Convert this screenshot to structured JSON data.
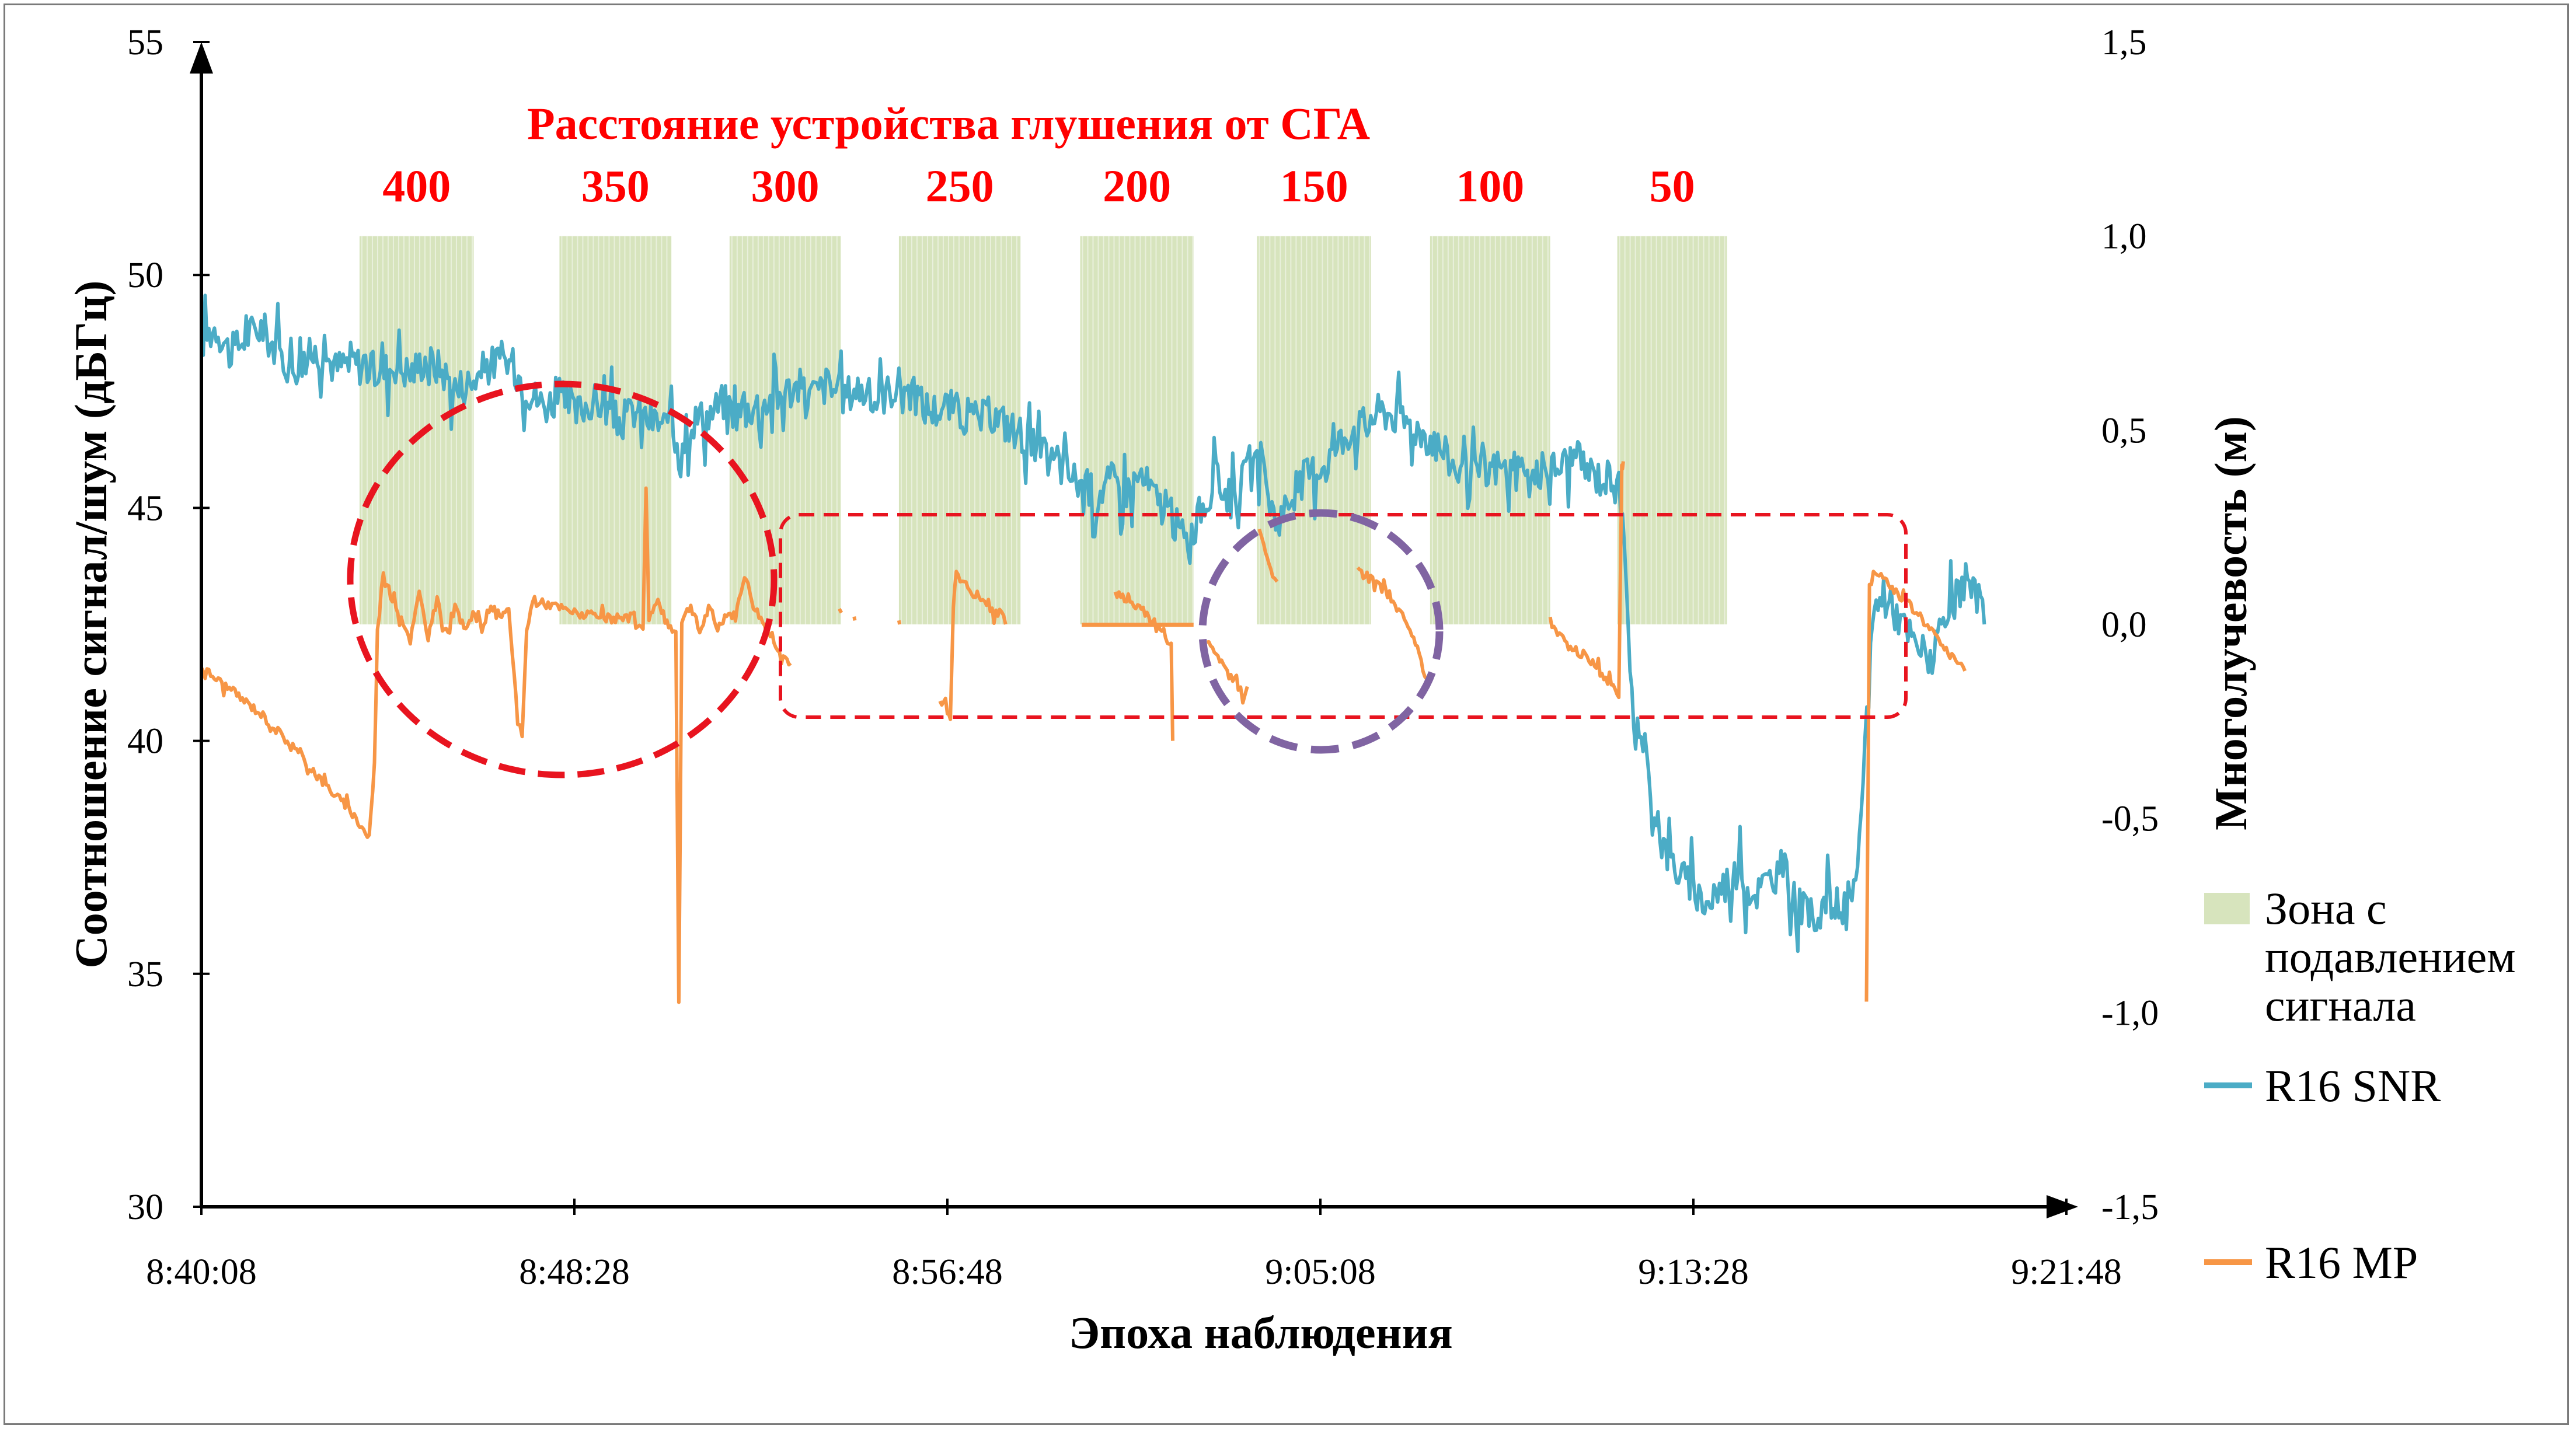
{
  "chart_data": {
    "type": "line",
    "title": "Расстояние устройства глушения от СГА",
    "xlabel": "Эпоха наблюдения",
    "ylabel_left": "Соотношение сигнал/шум (дБГц)",
    "ylabel_right": "Многолучевость (м)",
    "x_ticks": [
      "8:40:08",
      "8:48:28",
      "8:56:48",
      "9:05:08",
      "9:13:28",
      "9:21:48"
    ],
    "x_range_seconds": [
      0,
      2500
    ],
    "y_left_ticks": [
      "30",
      "35",
      "40",
      "45",
      "50",
      "55"
    ],
    "y_left_range": [
      30,
      55
    ],
    "y_right_ticks": [
      "-1,5",
      "-1,0",
      "-0,5",
      "0,0",
      "0,5",
      "1,0",
      "1,5"
    ],
    "y_right_range": [
      -1.5,
      1.5
    ],
    "zone_labels": [
      "400",
      "350",
      "300",
      "250",
      "200",
      "150",
      "100",
      "50"
    ],
    "zones_seconds": [
      [
        212,
        365
      ],
      [
        480,
        630
      ],
      [
        708,
        857
      ],
      [
        935,
        1098
      ],
      [
        1178,
        1330
      ],
      [
        1415,
        1568
      ],
      [
        1647,
        1808
      ],
      [
        1898,
        2045
      ]
    ],
    "zone_level_right": 1.0,
    "series": [
      {
        "name": "R16 SNR",
        "axis": "left",
        "points": [
          [
            0,
            48.6
          ],
          [
            20,
            48.9
          ],
          [
            40,
            48.3
          ],
          [
            60,
            48.7
          ],
          [
            80,
            48.9
          ],
          [
            100,
            48.4
          ],
          [
            120,
            48.0
          ],
          [
            140,
            48.2
          ],
          [
            160,
            48.4
          ],
          [
            180,
            48.0
          ],
          [
            200,
            48.2
          ],
          [
            220,
            48.0
          ],
          [
            240,
            47.9
          ],
          [
            260,
            48.1
          ],
          [
            280,
            47.9
          ],
          [
            300,
            48.2
          ],
          [
            320,
            48.0
          ],
          [
            340,
            47.6
          ],
          [
            360,
            47.7
          ],
          [
            380,
            48.0
          ],
          [
            400,
            48.2
          ],
          [
            420,
            48.0
          ],
          [
            440,
            47.5
          ],
          [
            460,
            47.2
          ],
          [
            480,
            47.4
          ],
          [
            500,
            47.0
          ],
          [
            520,
            47.3
          ],
          [
            540,
            47.2
          ],
          [
            560,
            46.8
          ],
          [
            580,
            47.1
          ],
          [
            600,
            46.9
          ],
          [
            620,
            46.8
          ],
          [
            640,
            46.5
          ],
          [
            660,
            46.9
          ],
          [
            680,
            47.0
          ],
          [
            700,
            47.3
          ],
          [
            720,
            47.0
          ],
          [
            740,
            47.2
          ],
          [
            760,
            47.3
          ],
          [
            780,
            47.5
          ],
          [
            800,
            47.6
          ],
          [
            820,
            47.4
          ],
          [
            840,
            47.7
          ],
          [
            860,
            47.4
          ],
          [
            880,
            47.6
          ],
          [
            900,
            47.3
          ],
          [
            920,
            47.5
          ],
          [
            940,
            47.7
          ],
          [
            960,
            47.3
          ],
          [
            980,
            47.1
          ],
          [
            1000,
            47.2
          ],
          [
            1020,
            47.0
          ],
          [
            1040,
            46.9
          ],
          [
            1060,
            47.0
          ],
          [
            1080,
            46.8
          ],
          [
            1100,
            46.6
          ],
          [
            1120,
            46.2
          ],
          [
            1140,
            46.0
          ],
          [
            1160,
            45.8
          ],
          [
            1180,
            45.5
          ],
          [
            1200,
            45.3
          ],
          [
            1220,
            45.6
          ],
          [
            1240,
            45.4
          ],
          [
            1260,
            45.7
          ],
          [
            1280,
            45.2
          ],
          [
            1300,
            44.8
          ],
          [
            1320,
            44.3
          ],
          [
            1340,
            44.9
          ],
          [
            1360,
            45.6
          ],
          [
            1380,
            45.2
          ],
          [
            1400,
            45.7
          ],
          [
            1420,
            45.9
          ],
          [
            1440,
            44.7
          ],
          [
            1460,
            45.2
          ],
          [
            1480,
            45.7
          ],
          [
            1500,
            45.9
          ],
          [
            1520,
            46.3
          ],
          [
            1540,
            46.7
          ],
          [
            1560,
            46.8
          ],
          [
            1580,
            47.1
          ],
          [
            1600,
            47.0
          ],
          [
            1620,
            46.8
          ],
          [
            1640,
            46.6
          ],
          [
            1660,
            46.3
          ],
          [
            1680,
            45.9
          ],
          [
            1700,
            45.6
          ],
          [
            1720,
            45.8
          ],
          [
            1740,
            45.9
          ],
          [
            1760,
            45.7
          ],
          [
            1780,
            45.6
          ],
          [
            1800,
            45.8
          ],
          [
            1820,
            45.9
          ],
          [
            1840,
            46.1
          ],
          [
            1860,
            45.8
          ],
          [
            1880,
            45.6
          ],
          [
            1900,
            45.9
          ],
          [
            1920,
            40.5
          ],
          [
            1940,
            39.2
          ],
          [
            1960,
            37.7
          ],
          [
            1980,
            37.2
          ],
          [
            2000,
            36.8
          ],
          [
            2020,
            36.5
          ],
          [
            2040,
            36.9
          ],
          [
            2060,
            37.2
          ],
          [
            2080,
            36.7
          ],
          [
            2100,
            37.0
          ],
          [
            2120,
            37.3
          ],
          [
            2140,
            36.4
          ],
          [
            2160,
            36.2
          ],
          [
            2180,
            36.6
          ],
          [
            2200,
            36.4
          ],
          [
            2220,
            36.9
          ],
          [
            2240,
            42.8
          ],
          [
            2260,
            43.1
          ],
          [
            2280,
            42.5
          ],
          [
            2300,
            42.0
          ],
          [
            2320,
            41.8
          ],
          [
            2340,
            42.6
          ],
          [
            2360,
            43.3
          ],
          [
            2380,
            43.1
          ],
          [
            2390,
            42.5
          ]
        ]
      },
      {
        "name": "R16 MP",
        "axis": "right",
        "segments": [
          [
            [
              0,
              -0.11
            ],
            [
              40,
              -0.17
            ],
            [
              80,
              -0.23
            ],
            [
              120,
              -0.31
            ],
            [
              160,
              -0.4
            ],
            [
              200,
              -0.48
            ],
            [
              225,
              -0.55
            ],
            [
              232,
              -0.36
            ],
            [
              236,
              -0.02
            ],
            [
              244,
              0.14
            ],
            [
              256,
              0.06
            ],
            [
              268,
              0.02
            ],
            [
              280,
              -0.04
            ],
            [
              292,
              0.08
            ],
            [
              304,
              -0.03
            ],
            [
              316,
              0.06
            ],
            [
              328,
              -0.02
            ],
            [
              340,
              0.04
            ],
            [
              352,
              -0.01
            ],
            [
              364,
              0.03
            ],
            [
              376,
              -0.01
            ],
            [
              388,
              0.05
            ],
            [
              400,
              0.02
            ],
            [
              412,
              0.03
            ],
            [
              424,
              -0.24
            ],
            [
              430,
              -0.28
            ],
            [
              436,
              -0.02
            ],
            [
              444,
              0.06
            ],
            [
              470,
              0.05
            ],
            [
              500,
              0.03
            ],
            [
              530,
              0.02
            ],
            [
              560,
              0.01
            ],
            [
              580,
              0.02
            ],
            [
              592,
              -0.02
            ],
            [
              596,
              0.36
            ],
            [
              600,
              0.02
            ],
            [
              612,
              0.06
            ],
            [
              624,
              0.0
            ],
            [
              636,
              -0.02
            ],
            [
              640,
              -0.97
            ],
            [
              644,
              0.01
            ],
            [
              656,
              0.05
            ],
            [
              668,
              -0.02
            ],
            [
              680,
              0.04
            ],
            [
              692,
              -0.01
            ],
            [
              704,
              0.03
            ],
            [
              716,
              0.02
            ],
            [
              728,
              0.13
            ],
            [
              740,
              0.05
            ],
            [
              760,
              -0.02
            ],
            [
              780,
              -0.08
            ],
            [
              790,
              -0.1
            ]
          ],
          [
            [
              855,
              0.04
            ],
            [
              858,
              0.03
            ]
          ],
          [
            [
              875,
              0.02
            ],
            [
              876,
              0.01
            ]
          ],
          [
            [
              935,
              0.01
            ],
            [
              936,
              0.0
            ]
          ],
          [
            [
              990,
              -0.2
            ],
            [
              1000,
              -0.22
            ],
            [
              1004,
              -0.25
            ],
            [
              1008,
              0.07
            ],
            [
              1012,
              0.13
            ],
            [
              1030,
              0.09
            ],
            [
              1050,
              0.05
            ],
            [
              1070,
              0.02
            ],
            [
              1078,
              0.0
            ]
          ],
          [
            [
              1225,
              0.08
            ],
            [
              1260,
              0.04
            ],
            [
              1290,
              -0.02
            ],
            [
              1300,
              -0.06
            ],
            [
              1302,
              -0.3
            ]
          ],
          [
            [
              1348,
              -0.05
            ],
            [
              1370,
              -0.11
            ],
            [
              1390,
              -0.16
            ],
            [
              1396,
              -0.2
            ],
            [
              1402,
              -0.16
            ]
          ],
          [
            [
              1418,
              0.24
            ],
            [
              1424,
              0.2
            ],
            [
              1436,
              0.13
            ],
            [
              1442,
              0.11
            ]
          ],
          [
            [
              1550,
              0.14
            ],
            [
              1580,
              0.1
            ],
            [
              1610,
              0.02
            ],
            [
              1630,
              -0.06
            ],
            [
              1640,
              -0.14
            ],
            [
              1646,
              -0.15
            ]
          ],
          [
            [
              1808,
              0.0
            ],
            [
              1840,
              -0.06
            ],
            [
              1870,
              -0.11
            ],
            [
              1890,
              -0.16
            ],
            [
              1900,
              -0.18
            ],
            [
              1904,
              0.4
            ],
            [
              1906,
              0.42
            ]
          ],
          [
            [
              2232,
              -0.98
            ],
            [
              2236,
              0.1
            ],
            [
              2244,
              0.14
            ],
            [
              2264,
              0.1
            ],
            [
              2284,
              0.06
            ],
            [
              2304,
              0.02
            ],
            [
              2324,
              -0.03
            ],
            [
              2344,
              -0.08
            ],
            [
              2364,
              -0.12
            ]
          ]
        ],
        "flat_segment": [
          [
            1180,
            -0.001
          ],
          [
            1330,
            -0.001
          ]
        ]
      }
    ],
    "legend": [
      {
        "label": "Зона с подавлением сигнала",
        "lines": [
          "Зона с",
          "подавлением",
          "сигнала"
        ]
      },
      {
        "label": "R16 SNR"
      },
      {
        "label": "R16 MP"
      }
    ],
    "legend_position": "right",
    "annotations": [
      {
        "shape": "ellipse",
        "style": "red dashed"
      },
      {
        "shape": "rounded-rectangle",
        "style": "red dashed"
      },
      {
        "shape": "ellipse",
        "style": "purple dashed"
      }
    ],
    "colors": {
      "snr": "#4bacc6",
      "mp": "#f79646",
      "zone_fill": "#d7e4bd",
      "title_red": "#ff0000",
      "ann_red": "#e8141f",
      "ann_purple": "#8064a2"
    }
  }
}
